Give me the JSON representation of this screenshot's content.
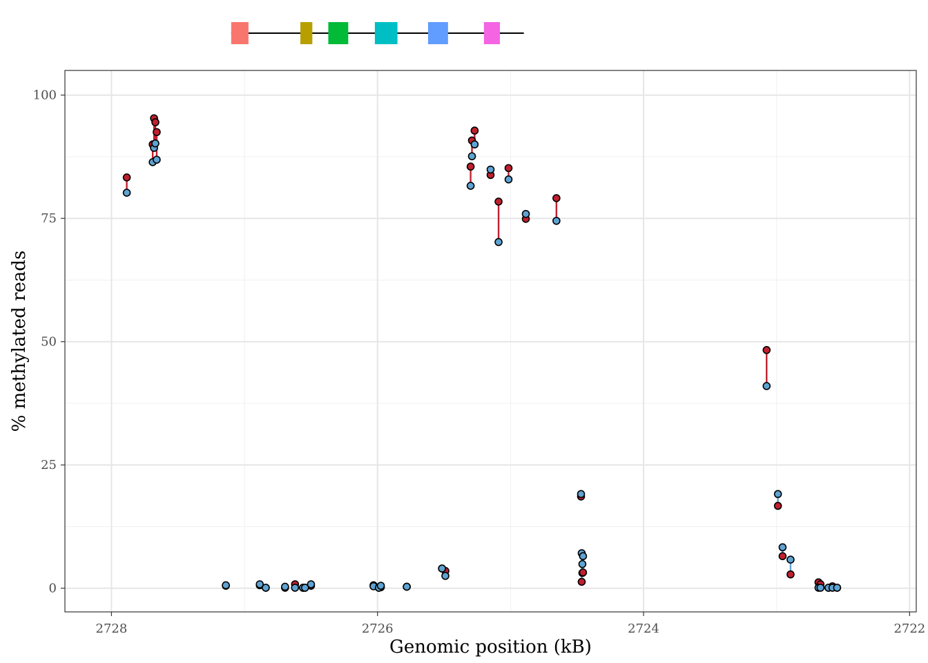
{
  "chart_data": {
    "type": "scatter",
    "xlabel": "Genomic position (kB)",
    "ylabel": "% methylated reads",
    "xlim": [
      2728.35,
      2721.95
    ],
    "ylim": [
      -4.8,
      105
    ],
    "x_reversed": true,
    "x_ticks": [
      2728,
      2726,
      2724,
      2722
    ],
    "x_tick_labels": [
      "2728",
      "2726",
      "2724",
      "2722"
    ],
    "y_ticks": [
      0,
      25,
      50,
      75,
      100
    ],
    "y_tick_labels": [
      "0",
      "25",
      "50",
      "75",
      "100"
    ],
    "grid": true,
    "legend": "none",
    "gene_track": {
      "line": [
        2727.1,
        2724.9
      ],
      "exons": [
        {
          "start": 2727.1,
          "end": 2726.97,
          "color": "#F8766D"
        },
        {
          "start": 2726.58,
          "end": 2726.49,
          "color": "#B79F00"
        },
        {
          "start": 2726.37,
          "end": 2726.22,
          "color": "#00BA38"
        },
        {
          "start": 2726.02,
          "end": 2725.85,
          "color": "#00BFC4"
        },
        {
          "start": 2725.62,
          "end": 2725.47,
          "color": "#619CFF"
        },
        {
          "start": 2725.2,
          "end": 2725.08,
          "color": "#F564E3"
        }
      ]
    },
    "colors": {
      "red_series": "#C0202F",
      "blue_series": "#5FA3D3"
    },
    "sites": [
      {
        "x": 2727.885,
        "red": 83.3,
        "blue": 80.2
      },
      {
        "x": 2727.69,
        "red": 90.0,
        "blue": 86.4
      },
      {
        "x": 2727.68,
        "red": 95.3,
        "blue": 89.3
      },
      {
        "x": 2727.67,
        "red": 94.5,
        "blue": 90.2
      },
      {
        "x": 2727.66,
        "red": 92.5,
        "blue": 86.9
      },
      {
        "x": 2727.14,
        "red": 0.5,
        "blue": 0.6
      },
      {
        "x": 2726.885,
        "red": 0.6,
        "blue": 0.8
      },
      {
        "x": 2726.84,
        "red": 0.1,
        "blue": 0.1
      },
      {
        "x": 2726.695,
        "red": 0.1,
        "blue": 0.3
      },
      {
        "x": 2726.62,
        "red": 0.8,
        "blue": 0.1
      },
      {
        "x": 2726.56,
        "red": 0.1,
        "blue": 0.1
      },
      {
        "x": 2726.545,
        "red": 0.1,
        "blue": 0.1
      },
      {
        "x": 2726.5,
        "red": 0.5,
        "blue": 0.8
      },
      {
        "x": 2726.03,
        "red": 0.6,
        "blue": 0.4
      },
      {
        "x": 2725.99,
        "red": 0.1,
        "blue": 0.1
      },
      {
        "x": 2725.975,
        "red": 0.2,
        "blue": 0.5
      },
      {
        "x": 2725.78,
        "red": 0.3,
        "blue": 0.3
      },
      {
        "x": 2725.515,
        "red": 4.0,
        "blue": 4.0
      },
      {
        "x": 2725.49,
        "red": 3.5,
        "blue": 2.5
      },
      {
        "x": 2725.3,
        "red": 85.5,
        "blue": 81.6
      },
      {
        "x": 2725.29,
        "red": 90.8,
        "blue": 87.6
      },
      {
        "x": 2725.27,
        "red": 92.8,
        "blue": 90.0
      },
      {
        "x": 2725.15,
        "red": 83.8,
        "blue": 84.9
      },
      {
        "x": 2725.09,
        "red": 78.4,
        "blue": 70.2
      },
      {
        "x": 2725.015,
        "red": 85.2,
        "blue": 82.9
      },
      {
        "x": 2724.885,
        "red": 74.9,
        "blue": 75.9
      },
      {
        "x": 2724.655,
        "red": 79.1,
        "blue": 74.5
      },
      {
        "x": 2724.47,
        "red": 18.6,
        "blue": 19.1
      },
      {
        "x": 2724.465,
        "red": 1.3,
        "blue": 7.1
      },
      {
        "x": 2724.46,
        "red": 3.1,
        "blue": 4.9
      },
      {
        "x": 2724.455,
        "red": 3.2,
        "blue": 6.5
      },
      {
        "x": 2723.075,
        "red": 48.3,
        "blue": 41.0
      },
      {
        "x": 2722.99,
        "red": 16.7,
        "blue": 19.1
      },
      {
        "x": 2722.955,
        "red": 6.5,
        "blue": 8.3
      },
      {
        "x": 2722.895,
        "red": 2.8,
        "blue": 5.8
      },
      {
        "x": 2722.685,
        "red": 1.2,
        "blue": 0.1
      },
      {
        "x": 2722.67,
        "red": 0.8,
        "blue": 0.1
      },
      {
        "x": 2722.61,
        "red": 0.1,
        "blue": 0.1
      },
      {
        "x": 2722.58,
        "red": 0.4,
        "blue": 0.1
      },
      {
        "x": 2722.545,
        "red": 0.1,
        "blue": 0.1
      }
    ]
  }
}
